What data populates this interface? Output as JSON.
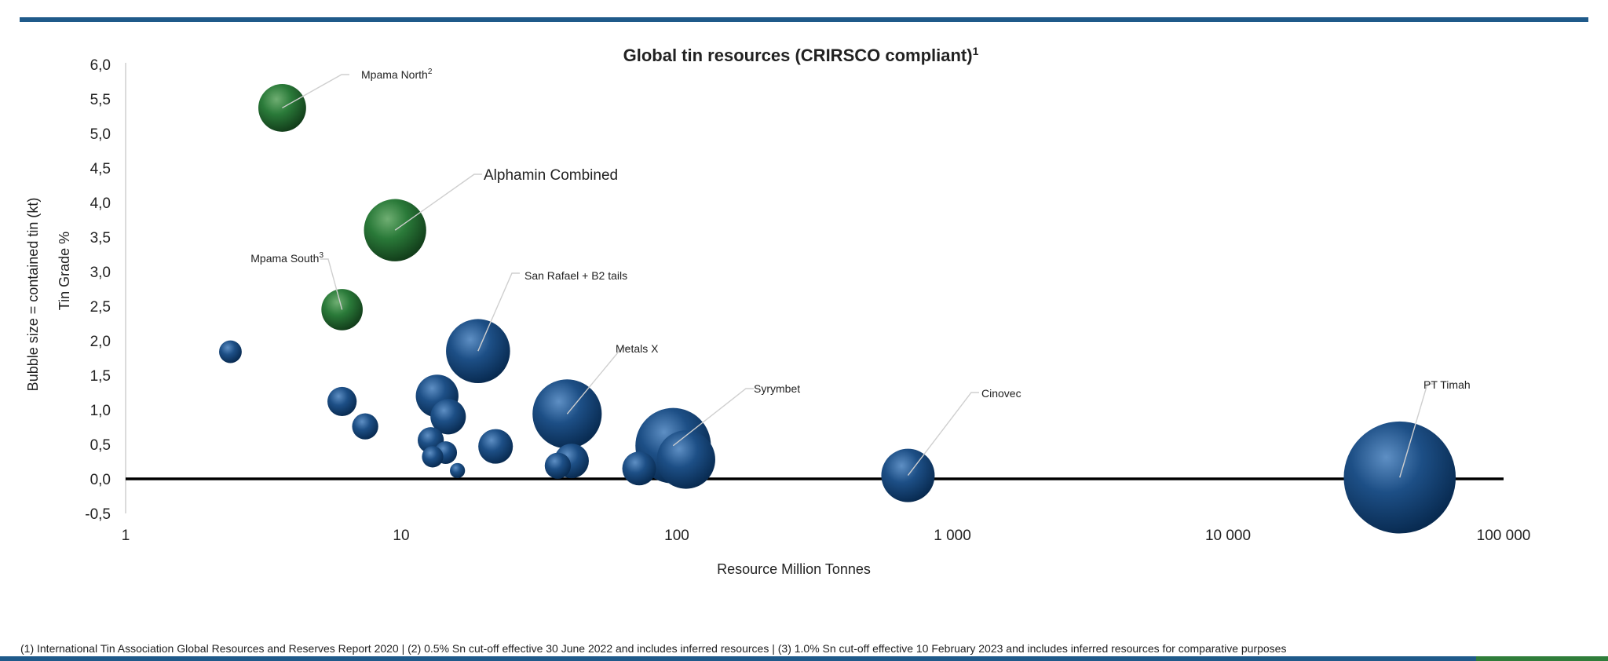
{
  "colors": {
    "accent": "#1f5a8a",
    "green_accent": "#2f7d3a",
    "blue_bubble": "#0f3f73",
    "green_bubble": "#1e6b32"
  },
  "footnote": "(1) International Tin Association Global Resources and Reserves Report 2020 | (2) 0.5% Sn cut-off effective 30 June 2022 and includes inferred resources | (3) 1.0% Sn cut-off effective 10 February 2023 and includes inferred resources for comparative purposes",
  "chart_data": {
    "type": "bubble",
    "title": "Global tin resources (CRIRSCO compliant)",
    "title_sup": "1",
    "xlabel": "Resource Million Tonnes",
    "ylabel_line1": "Bubble size = contained tin (kt)",
    "ylabel_line2": "Tin Grade %",
    "x_scale": "log",
    "xlim": [
      1,
      100000
    ],
    "ylim": [
      -0.5,
      6.0
    ],
    "x_ticks": [
      {
        "value": 1,
        "label": "1"
      },
      {
        "value": 10,
        "label": "10"
      },
      {
        "value": 100,
        "label": "100"
      },
      {
        "value": 1000,
        "label": "1 000"
      },
      {
        "value": 10000,
        "label": "10 000"
      },
      {
        "value": 100000,
        "label": "100 000"
      }
    ],
    "y_ticks": [
      {
        "value": 6.0,
        "label": "6,0"
      },
      {
        "value": 5.5,
        "label": "5,5"
      },
      {
        "value": 5.0,
        "label": "5,0"
      },
      {
        "value": 4.5,
        "label": "4,5"
      },
      {
        "value": 4.0,
        "label": "4,0"
      },
      {
        "value": 3.5,
        "label": "3,5"
      },
      {
        "value": 3.0,
        "label": "3,0"
      },
      {
        "value": 2.5,
        "label": "2,5"
      },
      {
        "value": 2.0,
        "label": "2,0"
      },
      {
        "value": 1.5,
        "label": "1,5"
      },
      {
        "value": 1.0,
        "label": "1,0"
      },
      {
        "value": 0.5,
        "label": "0,5"
      },
      {
        "value": 0.0,
        "label": "0,0"
      },
      {
        "value": -0.5,
        "label": "-0,5"
      }
    ],
    "grid": false,
    "points": [
      {
        "x": 3.7,
        "y": 5.37,
        "size": 200,
        "color": "green",
        "label": "Mpama North",
        "sup": "2"
      },
      {
        "x": 9.5,
        "y": 3.6,
        "size": 340,
        "color": "green",
        "label": "Alphamin Combined",
        "sup": ""
      },
      {
        "x": 6.1,
        "y": 2.45,
        "size": 150,
        "color": "green",
        "label": "Mpama South",
        "sup": "3"
      },
      {
        "x": 2.4,
        "y": 1.84,
        "size": 45,
        "color": "blue"
      },
      {
        "x": 6.1,
        "y": 1.12,
        "size": 75,
        "color": "blue"
      },
      {
        "x": 7.4,
        "y": 0.76,
        "size": 60,
        "color": "blue"
      },
      {
        "x": 13.5,
        "y": 1.2,
        "size": 160,
        "color": "blue"
      },
      {
        "x": 14.8,
        "y": 0.9,
        "size": 110,
        "color": "blue"
      },
      {
        "x": 19.0,
        "y": 1.85,
        "size": 360,
        "color": "blue",
        "label": "San Rafael + B2 tails",
        "sup": ""
      },
      {
        "x": 12.8,
        "y": 0.56,
        "size": 60,
        "color": "blue"
      },
      {
        "x": 14.5,
        "y": 0.38,
        "size": 45,
        "color": "blue"
      },
      {
        "x": 13.0,
        "y": 0.32,
        "size": 40,
        "color": "blue"
      },
      {
        "x": 16.0,
        "y": 0.12,
        "size": 20,
        "color": "blue"
      },
      {
        "x": 22.0,
        "y": 0.47,
        "size": 105,
        "color": "blue"
      },
      {
        "x": 40.0,
        "y": 0.94,
        "size": 420,
        "color": "blue",
        "label": "Metals X",
        "sup": ""
      },
      {
        "x": 41.5,
        "y": 0.26,
        "size": 105,
        "color": "blue"
      },
      {
        "x": 37.0,
        "y": 0.19,
        "size": 60,
        "color": "blue"
      },
      {
        "x": 97.0,
        "y": 0.48,
        "size": 500,
        "color": "blue",
        "label": "Syrymbet",
        "sup": ""
      },
      {
        "x": 108.0,
        "y": 0.28,
        "size": 300,
        "color": "blue"
      },
      {
        "x": 73.0,
        "y": 0.15,
        "size": 100,
        "color": "blue"
      },
      {
        "x": 690.0,
        "y": 0.05,
        "size": 250,
        "color": "blue",
        "label": "Cinovec",
        "sup": ""
      },
      {
        "x": 42000.0,
        "y": 0.02,
        "size": 1100,
        "color": "blue",
        "label": "PT Timah",
        "sup": ""
      }
    ]
  }
}
